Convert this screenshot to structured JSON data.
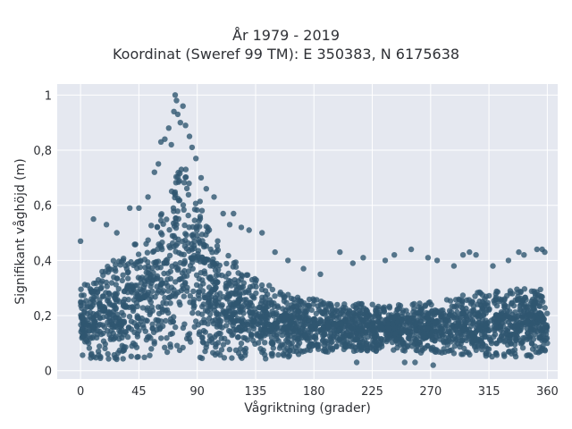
{
  "chart_data": {
    "type": "scatter",
    "title": "År 1979 - 2019",
    "subtitle": "Koordinat (Sweref 99 TM): E 350383, N 6175638",
    "xlabel": "Vågriktning (grader)",
    "ylabel": "Signifikant våghöjd (m)",
    "xlim": [
      -18,
      368
    ],
    "ylim": [
      -0.03,
      1.04
    ],
    "xticks": [
      0,
      45,
      90,
      135,
      180,
      225,
      270,
      315,
      360
    ],
    "xtick_labels": [
      "0",
      "45",
      "90",
      "135",
      "180",
      "225",
      "270",
      "315",
      "360"
    ],
    "yticks": [
      0,
      0.2,
      0.4,
      0.6,
      0.8,
      1
    ],
    "ytick_labels": [
      "0",
      "0,2",
      "0,4",
      "0,6",
      "0,8",
      "1"
    ],
    "grid": true,
    "plot_background": "#e5e8f0",
    "marker_color": "#2f5670",
    "envelope": {
      "direction": [
        0,
        10,
        20,
        30,
        40,
        50,
        60,
        65,
        70,
        75,
        80,
        85,
        90,
        95,
        100,
        110,
        120,
        130,
        140,
        150,
        160,
        170,
        180,
        200,
        225,
        250,
        270,
        290,
        310,
        330,
        345,
        360
      ],
      "upper": [
        0.3,
        0.34,
        0.38,
        0.42,
        0.45,
        0.5,
        0.58,
        0.64,
        0.7,
        0.77,
        0.8,
        0.76,
        0.68,
        0.58,
        0.52,
        0.44,
        0.4,
        0.36,
        0.32,
        0.3,
        0.28,
        0.27,
        0.26,
        0.25,
        0.24,
        0.24,
        0.25,
        0.27,
        0.29,
        0.3,
        0.3,
        0.3
      ],
      "lower": [
        0.05,
        0.04,
        0.04,
        0.04,
        0.04,
        0.04,
        0.04,
        0.04,
        0.04,
        0.04,
        0.04,
        0.04,
        0.04,
        0.04,
        0.04,
        0.04,
        0.04,
        0.04,
        0.04,
        0.05,
        0.05,
        0.06,
        0.06,
        0.07,
        0.07,
        0.07,
        0.06,
        0.06,
        0.05,
        0.05,
        0.05,
        0.05
      ]
    },
    "outliers": [
      {
        "x": 0,
        "y": 0.47
      },
      {
        "x": 10,
        "y": 0.55
      },
      {
        "x": 20,
        "y": 0.53
      },
      {
        "x": 28,
        "y": 0.5
      },
      {
        "x": 38,
        "y": 0.59
      },
      {
        "x": 45,
        "y": 0.59
      },
      {
        "x": 52,
        "y": 0.63
      },
      {
        "x": 57,
        "y": 0.72
      },
      {
        "x": 60,
        "y": 0.75
      },
      {
        "x": 62,
        "y": 0.83
      },
      {
        "x": 65,
        "y": 0.84
      },
      {
        "x": 68,
        "y": 0.88
      },
      {
        "x": 70,
        "y": 0.82
      },
      {
        "x": 72,
        "y": 0.94
      },
      {
        "x": 73,
        "y": 1.0
      },
      {
        "x": 74,
        "y": 0.98
      },
      {
        "x": 75,
        "y": 0.93
      },
      {
        "x": 77,
        "y": 0.9
      },
      {
        "x": 79,
        "y": 0.96
      },
      {
        "x": 81,
        "y": 0.89
      },
      {
        "x": 84,
        "y": 0.85
      },
      {
        "x": 86,
        "y": 0.81
      },
      {
        "x": 89,
        "y": 0.77
      },
      {
        "x": 93,
        "y": 0.7
      },
      {
        "x": 97,
        "y": 0.66
      },
      {
        "x": 103,
        "y": 0.63
      },
      {
        "x": 110,
        "y": 0.57
      },
      {
        "x": 115,
        "y": 0.53
      },
      {
        "x": 118,
        "y": 0.57
      },
      {
        "x": 124,
        "y": 0.52
      },
      {
        "x": 130,
        "y": 0.51
      },
      {
        "x": 140,
        "y": 0.5
      },
      {
        "x": 150,
        "y": 0.43
      },
      {
        "x": 160,
        "y": 0.4
      },
      {
        "x": 172,
        "y": 0.37
      },
      {
        "x": 185,
        "y": 0.35
      },
      {
        "x": 200,
        "y": 0.43
      },
      {
        "x": 210,
        "y": 0.39
      },
      {
        "x": 218,
        "y": 0.41
      },
      {
        "x": 235,
        "y": 0.4
      },
      {
        "x": 242,
        "y": 0.42
      },
      {
        "x": 255,
        "y": 0.44
      },
      {
        "x": 268,
        "y": 0.41
      },
      {
        "x": 275,
        "y": 0.4
      },
      {
        "x": 288,
        "y": 0.38
      },
      {
        "x": 295,
        "y": 0.42
      },
      {
        "x": 300,
        "y": 0.43
      },
      {
        "x": 305,
        "y": 0.42
      },
      {
        "x": 318,
        "y": 0.38
      },
      {
        "x": 330,
        "y": 0.4
      },
      {
        "x": 338,
        "y": 0.43
      },
      {
        "x": 342,
        "y": 0.42
      },
      {
        "x": 352,
        "y": 0.44
      },
      {
        "x": 356,
        "y": 0.44
      },
      {
        "x": 358,
        "y": 0.43
      },
      {
        "x": 250,
        "y": 0.03
      },
      {
        "x": 258,
        "y": 0.03
      },
      {
        "x": 272,
        "y": 0.02
      },
      {
        "x": 213,
        "y": 0.03
      }
    ]
  }
}
